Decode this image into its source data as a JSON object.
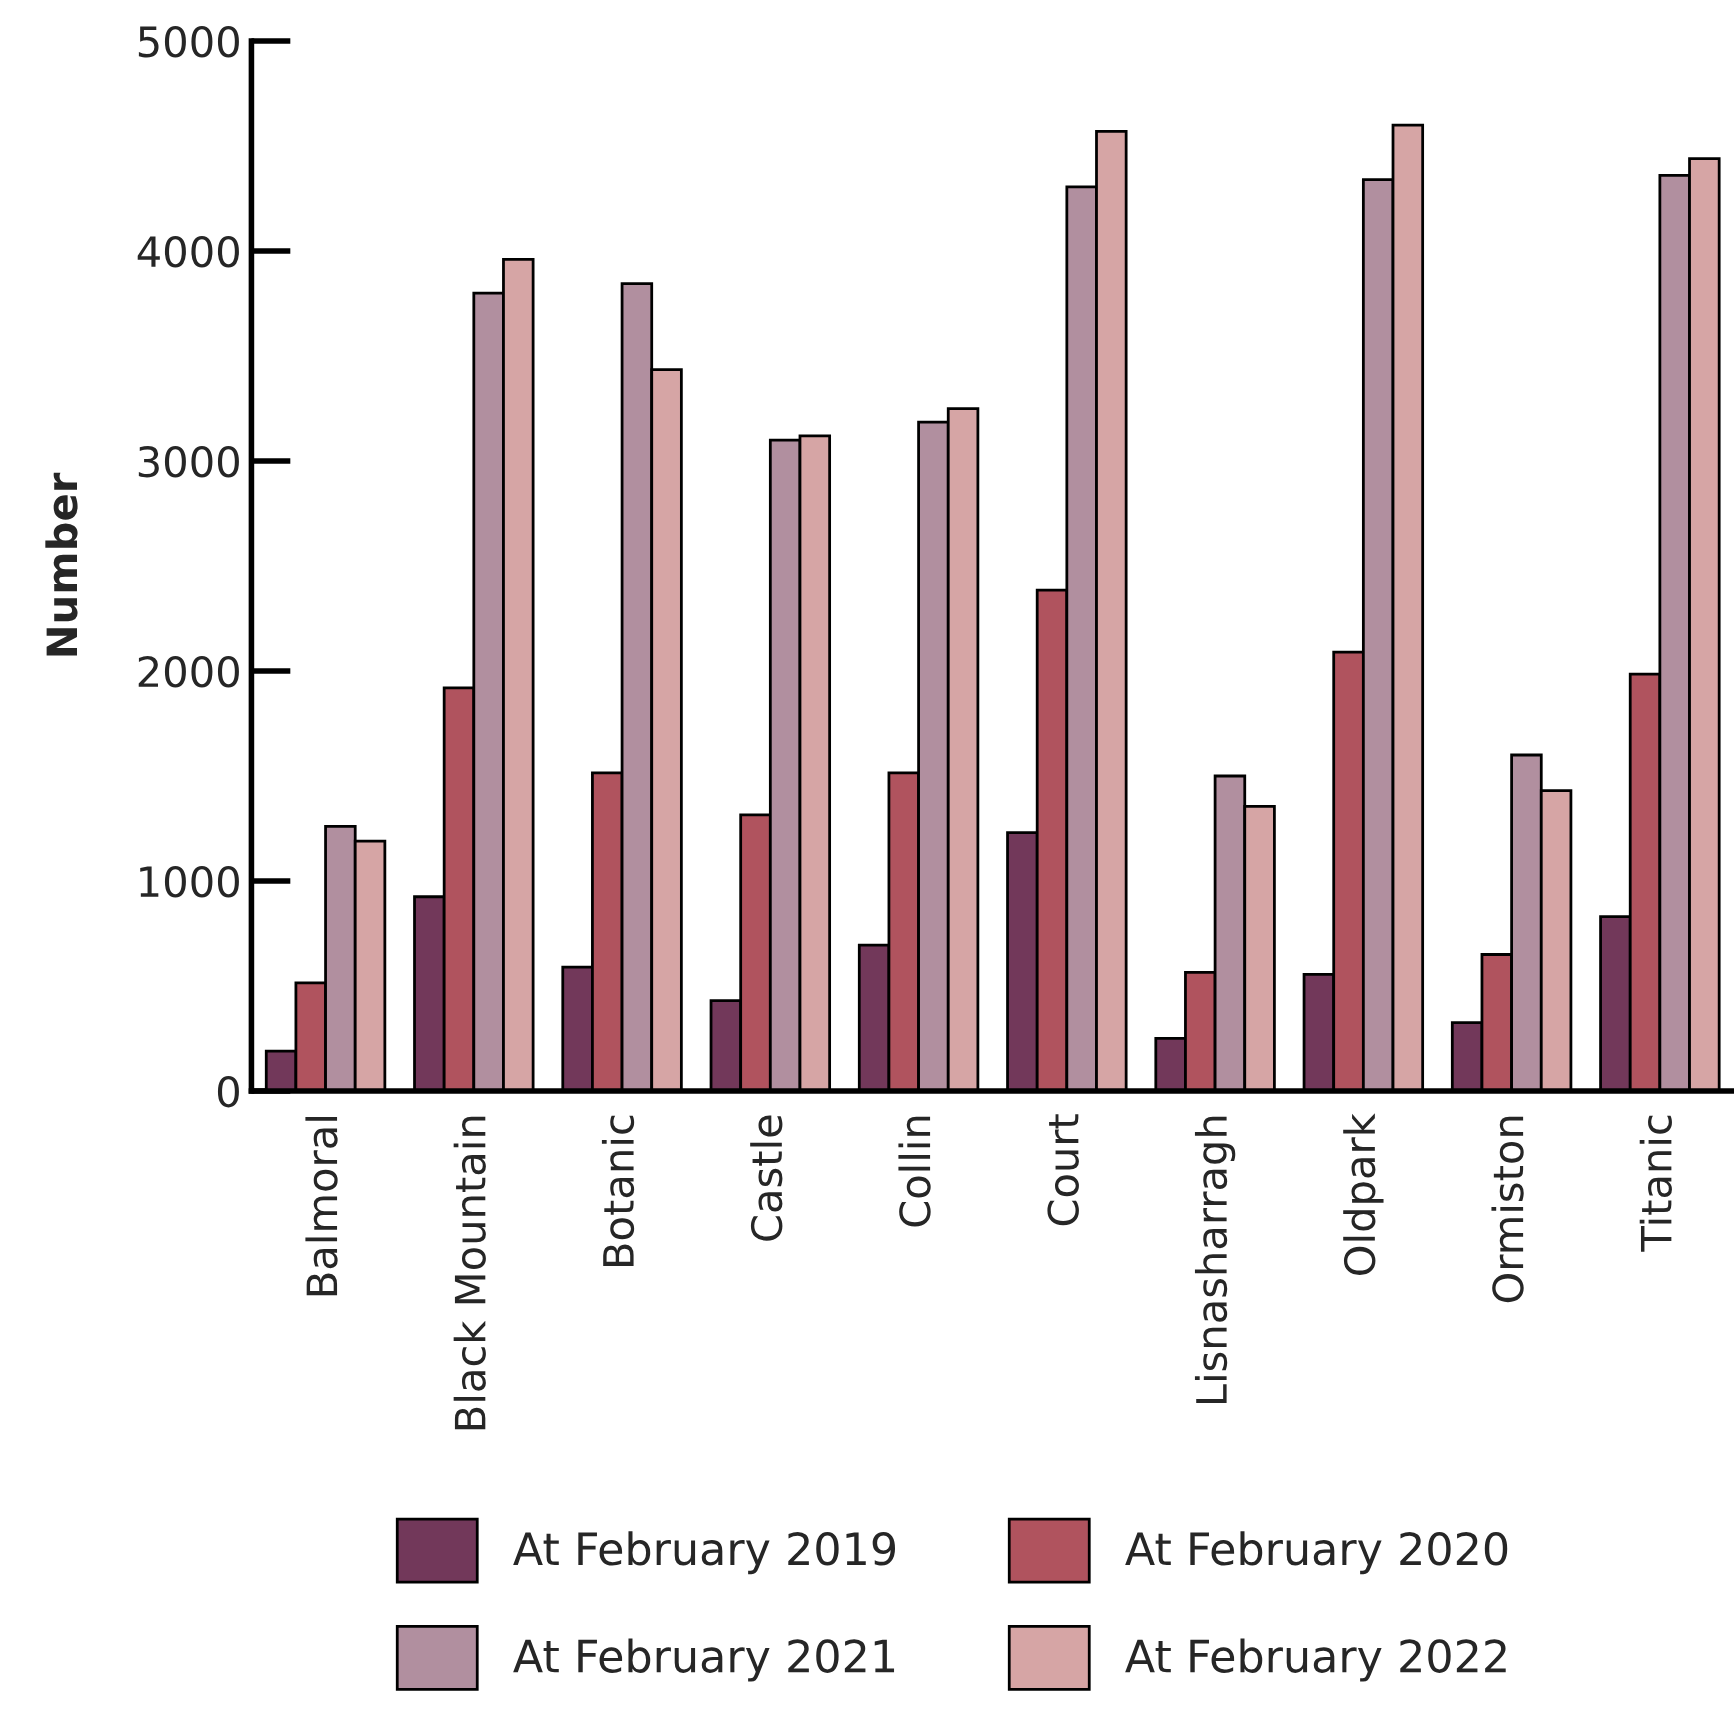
{
  "chart_data": {
    "type": "bar",
    "ylabel": "Number",
    "categories": [
      "Balmoral",
      "Black Mountain",
      "Botanic",
      "Castle",
      "Collin",
      "Court",
      "Lisnasharragh",
      "Oldpark",
      "Ormiston",
      "Titanic"
    ],
    "series": [
      {
        "name": "At February 2019",
        "color": "#72385a",
        "values": [
          190,
          925,
          590,
          430,
          695,
          1230,
          250,
          555,
          325,
          830
        ]
      },
      {
        "name": "At February 2020",
        "color": "#b0535e",
        "values": [
          515,
          1920,
          1515,
          1315,
          1515,
          2385,
          565,
          2090,
          650,
          1985
        ]
      },
      {
        "name": "At February 2021",
        "color": "#b18f9f",
        "values": [
          1260,
          3800,
          3845,
          3100,
          3185,
          4305,
          1500,
          4340,
          1600,
          4360
        ]
      },
      {
        "name": "At February 2022",
        "color": "#d6a5a5",
        "values": [
          1190,
          3960,
          3435,
          3120,
          3250,
          4570,
          1355,
          4600,
          1430,
          4440
        ]
      }
    ],
    "ylim": [
      0,
      5000
    ],
    "yticks": [
      0,
      1000,
      2000,
      3000,
      4000,
      5000
    ],
    "grid": false,
    "legend": "bottom"
  }
}
